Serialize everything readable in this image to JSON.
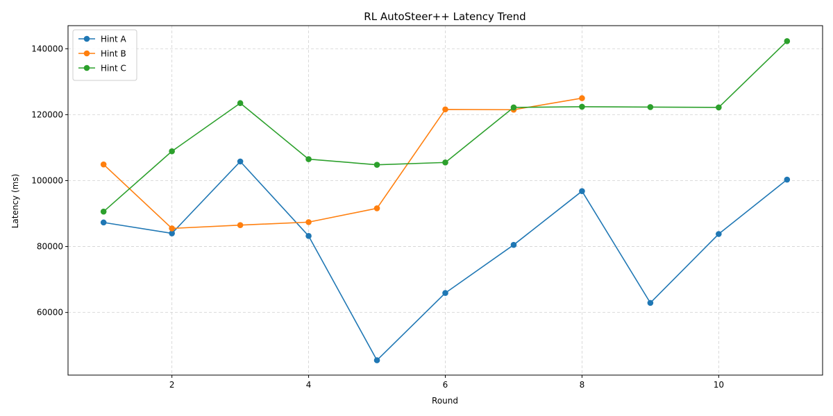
{
  "chart_data": {
    "type": "line",
    "title": "RL AutoSteer++ Latency Trend",
    "xlabel": "Round",
    "ylabel": "Latency (ms)",
    "xlim": [
      0.48,
      11.52
    ],
    "ylim": [
      41000,
      147000
    ],
    "xticks": [
      2,
      4,
      6,
      8,
      10
    ],
    "yticks": [
      60000,
      80000,
      100000,
      120000,
      140000
    ],
    "grid": true,
    "grid_style": "dashed",
    "legend_position": "top-left",
    "series": [
      {
        "name": "Hint A",
        "color": "#1f77b4",
        "marker": "circle",
        "x": [
          1,
          2,
          3,
          4,
          5,
          6,
          7,
          8,
          9,
          10,
          11
        ],
        "values": [
          87300,
          84000,
          105800,
          83200,
          45500,
          65900,
          80500,
          96800,
          62900,
          83800,
          100300
        ]
      },
      {
        "name": "Hint B",
        "color": "#ff7f0e",
        "marker": "circle",
        "x": [
          1,
          2,
          3,
          4,
          5,
          6,
          7,
          8
        ],
        "values": [
          104900,
          85500,
          86500,
          87400,
          91600,
          121600,
          121500,
          125000
        ]
      },
      {
        "name": "Hint C",
        "color": "#2ca02c",
        "marker": "circle",
        "x": [
          1,
          2,
          3,
          4,
          5,
          6,
          7,
          8,
          9,
          10,
          11
        ],
        "values": [
          90600,
          108900,
          123500,
          106500,
          104800,
          105500,
          122200,
          122400,
          122300,
          122200,
          142300
        ]
      }
    ]
  }
}
